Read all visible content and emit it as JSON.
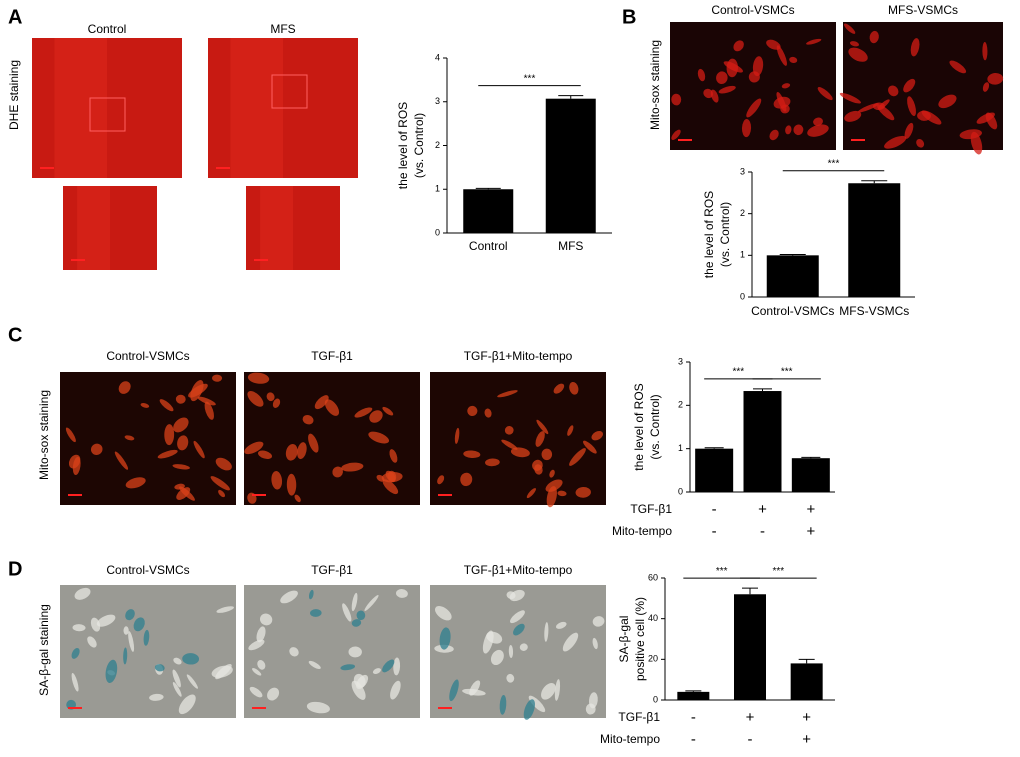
{
  "panels": [
    {
      "letter": "A",
      "side_label": "DHE staining",
      "image_labels": [
        "Control",
        "MFS"
      ]
    },
    {
      "letter": "B",
      "side_label": "Mito-sox staining",
      "image_labels": [
        "Control-VSMCs",
        "MFS-VSMCs"
      ]
    },
    {
      "letter": "C",
      "side_label": "Mito-sox staining",
      "image_labels": [
        "Control-VSMCs",
        "TGF-β1",
        "TGF-β1+Mito-tempo"
      ]
    },
    {
      "letter": "D",
      "side_label": "SA-β-gal staining",
      "image_labels": [
        "Control-VSMCs",
        "TGF-β1",
        "TGF-β1+Mito-tempo"
      ]
    }
  ],
  "chart_data": [
    {
      "type": "bar",
      "ylabel": [
        "the level of ROS",
        "(vs. Control)"
      ],
      "categories": [
        "Control",
        "MFS"
      ],
      "values": [
        1.0,
        3.07
      ],
      "errors": [
        0.02,
        0.07
      ],
      "ylim": [
        0,
        4
      ],
      "yticks": [
        0,
        1,
        2,
        3,
        4
      ],
      "color": "#000000",
      "significance": [
        {
          "from": 0,
          "to": 1,
          "label": "***"
        }
      ]
    },
    {
      "type": "bar",
      "ylabel": [
        "the level of ROS",
        "(vs. Control)"
      ],
      "categories": [
        "Control-VSMCs",
        "MFS-VSMCs"
      ],
      "values": [
        1.0,
        2.73
      ],
      "errors": [
        0.02,
        0.06
      ],
      "ylim": [
        0,
        3
      ],
      "yticks": [
        0,
        1,
        2,
        3
      ],
      "color": "#000000",
      "significance": [
        {
          "from": 0,
          "to": 1,
          "label": "***"
        }
      ]
    },
    {
      "type": "bar",
      "ylabel": [
        "the level of ROS",
        "(vs. Control)"
      ],
      "values": [
        1.0,
        2.33,
        0.78
      ],
      "errors": [
        0.02,
        0.05,
        0.02
      ],
      "ylim": [
        0,
        3
      ],
      "yticks": [
        0,
        1,
        2,
        3
      ],
      "color": "#000000",
      "conditions": [
        {
          "name": "TGF-β1",
          "signs": [
            "-",
            "+",
            "+"
          ]
        },
        {
          "name": "Mito-tempo",
          "signs": [
            "-",
            "-",
            "+"
          ]
        }
      ],
      "significance": [
        {
          "from": 0,
          "to": 1,
          "label": "***"
        },
        {
          "from": 1,
          "to": 2,
          "label": "***"
        }
      ]
    },
    {
      "type": "bar",
      "ylabel": [
        "SA-β-gal",
        "positive cell (%)"
      ],
      "values": [
        4,
        52,
        18
      ],
      "errors": [
        0.5,
        3,
        2
      ],
      "ylim": [
        0,
        60
      ],
      "yticks": [
        0,
        20,
        40,
        60
      ],
      "color": "#000000",
      "conditions": [
        {
          "name": "TGF-β1",
          "signs": [
            "-",
            "+",
            "+"
          ]
        },
        {
          "name": "Mito-tempo",
          "signs": [
            "-",
            "-",
            "+"
          ]
        }
      ],
      "significance": [
        {
          "from": 0,
          "to": 1,
          "label": "***"
        },
        {
          "from": 1,
          "to": 2,
          "label": "***"
        }
      ]
    }
  ]
}
